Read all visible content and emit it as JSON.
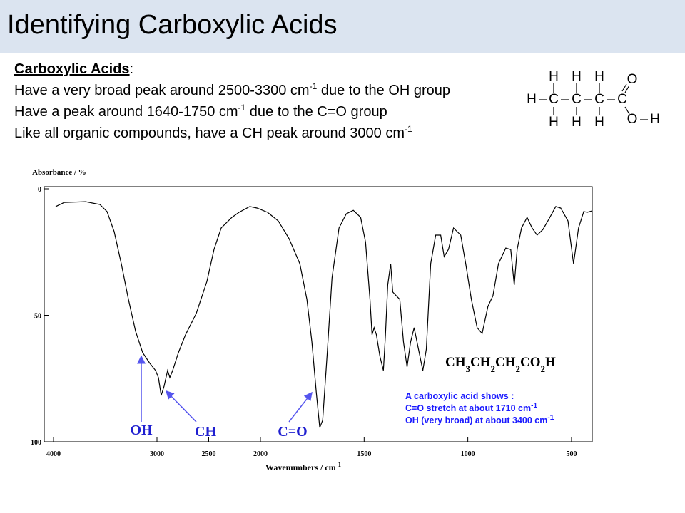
{
  "slide": {
    "title": "Identifying Carboxylic Acids",
    "heading": "Carboxylic Acids",
    "heading_suffix": ":",
    "lines": [
      [
        "Have a very broad peak around 2500-3300 cm",
        "-1",
        " due to the OH group"
      ],
      [
        "Have a peak around 1640-1750 cm",
        "-1",
        " due to the C=O group"
      ],
      [
        "Like all organic compounds, have a CH peak around 3000 cm",
        "-1"
      ]
    ],
    "molecule": [
      "H",
      "H",
      "H",
      "O",
      "H",
      "C",
      "C",
      "C",
      "C",
      "H",
      "H",
      "H",
      "O",
      "H"
    ]
  },
  "chart_data": {
    "type": "line",
    "ylabel": "Absorbance / %",
    "xlabel": [
      "Wavenumbers / cm",
      "-1"
    ],
    "xlim": [
      4000,
      400
    ],
    "x_break": 2000,
    "xticks": [
      4000,
      3000,
      2500,
      2000,
      1500,
      1000,
      500
    ],
    "ylim": [
      0,
      100
    ],
    "y_reversed": true,
    "yticks": [
      0,
      50,
      100
    ],
    "series": [
      {
        "color": "#000000",
        "x": [
          3979,
          3897,
          3690,
          3552,
          3483,
          3414,
          3345,
          3276,
          3207,
          3138,
          3069,
          3014,
          2986,
          2959,
          2931,
          2897,
          2876,
          2848,
          2793,
          2724,
          2621,
          2517,
          2448,
          2379,
          2276,
          2207,
          2103,
          2034,
          1966,
          1914,
          1862,
          1810,
          1776,
          1752,
          1731,
          1714,
          1700,
          1679,
          1655,
          1621,
          1586,
          1552,
          1517,
          1493,
          1472,
          1462,
          1452,
          1441,
          1424,
          1407,
          1397,
          1386,
          1372,
          1362,
          1345,
          1328,
          1310,
          1293,
          1276,
          1259,
          1238,
          1217,
          1200,
          1179,
          1155,
          1131,
          1114,
          1093,
          1069,
          1034,
          1010,
          983,
          955,
          931,
          903,
          879,
          852,
          817,
          793,
          776,
          762,
          741,
          714,
          690,
          666,
          638,
          610,
          576,
          552,
          517,
          490,
          466,
          441,
          424,
          400
        ],
        "values": [
          7.0,
          5.4,
          5.1,
          6.2,
          9.0,
          16.9,
          29.6,
          43.7,
          56.3,
          64.8,
          69.0,
          71.8,
          74.6,
          81.7,
          78.0,
          71.8,
          74.6,
          71.8,
          64.8,
          57.7,
          49.3,
          36.6,
          23.9,
          15.5,
          11.3,
          9.3,
          7.0,
          7.6,
          9.3,
          12.7,
          19.7,
          29.6,
          43.7,
          60.6,
          80.3,
          94.4,
          91.5,
          66.2,
          35.2,
          15.5,
          9.9,
          8.5,
          11.3,
          21.1,
          43.7,
          57.7,
          54.9,
          57.7,
          66.2,
          71.8,
          57.7,
          38.0,
          29.6,
          40.8,
          42.3,
          43.7,
          60.6,
          70.4,
          60.6,
          54.9,
          63.4,
          71.8,
          63.4,
          29.6,
          18.3,
          18.3,
          26.8,
          23.9,
          15.5,
          18.3,
          29.6,
          43.7,
          54.9,
          57.2,
          46.5,
          42.3,
          29.6,
          23.4,
          24.0,
          38.0,
          23.9,
          15.5,
          11.3,
          15.5,
          18.3,
          16.1,
          12.1,
          7.0,
          7.6,
          12.7,
          29.6,
          15.5,
          9.0,
          9.3,
          8.7
        ]
      }
    ],
    "annotations": [
      "OH",
      "CH",
      "C=O"
    ],
    "annotation_color": "#2020d0",
    "formula": [
      "CH",
      "3",
      "CH",
      "2",
      "CH",
      "2",
      "CO",
      "2",
      "H"
    ],
    "info": [
      [
        "A carboxylic acid shows :"
      ],
      [
        "C=O stretch at about 1710 cm",
        "-1"
      ],
      [
        "OH (very broad) at about 3400 cm",
        "-1"
      ]
    ],
    "info_color": "#1a1aff"
  }
}
